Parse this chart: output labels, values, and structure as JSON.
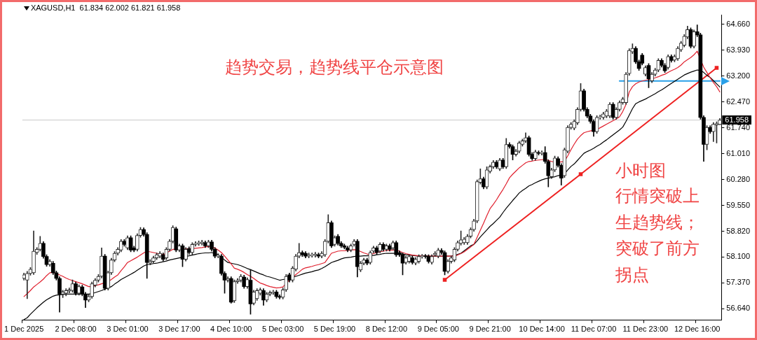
{
  "chart_data": {
    "type": "candlestick",
    "title": "XAGUSD,H1  61.834 62.002 61.821 61.958",
    "colors": [
      "#2a2a2a",
      "#2a2a2a",
      "#2a2a2a",
      "#2a2a2a",
      "#2a2a2a",
      "#2a2a2a",
      "#000000",
      "#000000",
      "#2a2a2a",
      "#000000",
      "#000000",
      "#000000",
      "#2a2a2a",
      "#2a2a2a",
      "#2a2a2a",
      "#2a2a2a",
      "#000000",
      "#2a2a2a",
      "#000000",
      "#000000",
      "#2a2a2a",
      "#2a2a2a",
      "#2a2a2a",
      "#2a2a2a",
      "#2a2a2a",
      "#000000",
      "#2a2a2a",
      "#2a2a2a",
      "#2a2a2a",
      "#2a2a2a",
      "#2a2a2a",
      "#000000",
      "#2a2a2a",
      "#000000",
      "#000000",
      "#2a2a2a",
      "#2a2a2a",
      "#000000",
      "#000000",
      "#2a2a2a",
      "#2a2a2a",
      "#2a2a2a",
      "#2a2a2a",
      "#000000",
      "#2a2a2a",
      "#2a2a2a",
      "#2a2a2a",
      "#000000",
      "#2a2a2a",
      "#000000",
      "#2a2a2a",
      "#000000",
      "#2a2a2a",
      "#2a2a2a",
      "#2a2a2a",
      "#2a2a2a",
      "#000000",
      "#2a2a2a",
      "#000000",
      "#000000",
      "#2a2a2a",
      "#000000",
      "#000000",
      "#2a2a2a",
      "#000000",
      "#2a2a2a",
      "#2a2a2a",
      "#2a2a2a",
      "#000000",
      "#2a2a2a",
      "#000000",
      "#2a2a2a",
      "#2a2a2a",
      "#2a2a2a",
      "#000000",
      "#2a2a2a",
      "#2a2a2a",
      "#2a2a2a",
      "#000000",
      "#000000",
      "#2a2a2a",
      "#2a2a2a",
      "#000000",
      "#2a2a2a",
      "#2a2a2a",
      "#2a2a2a",
      "#000000",
      "#000000",
      "#2a2a2a",
      "#2a2a2a",
      "#2a2a2a",
      "#000000",
      "#2a2a2a",
      "#2a2a2a",
      "#2a2a2a",
      "#000000",
      "#2a2a2a",
      "#000000",
      "#000000",
      "#000000",
      "#000000",
      "#2a2a2a",
      "#2a2a2a",
      "#000000",
      "#2a2a2a",
      "#2a2a2a",
      "#000000",
      "#2a2a2a",
      "#2a2a2a",
      "#000000",
      "#2a2a2a",
      "#000000",
      "#2a2a2a",
      "#000000",
      "#2a2a2a",
      "#000000",
      "#000000",
      "#000000",
      "#2a2a2a",
      "#2a2a2a",
      "#000000",
      "#2a2a2a",
      "#2a2a2a",
      "#2a2a2a",
      "#000000",
      "#000000",
      "#2a2a2a",
      "#2a2a2a",
      "#2a2a2a",
      "#000000",
      "#000000",
      "#2a2a2a",
      "#2a2a2a",
      "#2a2a2a",
      "#2a2a2a",
      "#2a2a2a",
      "#2a2a2a",
      "#2a2a2a",
      "#2a2a2a",
      "#2a2a2a",
      "#2a2a2a",
      "#2a2a2a",
      "#000000",
      "#2a2a2a",
      "#2a2a2a",
      "#2a2a2a",
      "#000000",
      "#2a2a2a",
      "#000000",
      "#2a2a2a",
      "#000000",
      "#000000",
      "#2a2a2a",
      "#2a2a2a",
      "#2a2a2a",
      "#2a2a2a",
      "#000000",
      "#000000",
      "#2a2a2a",
      "#000000",
      "#2a2a2a",
      "#000000",
      "#000000",
      "#2a2a2a",
      "#2a2a2a",
      "#000000",
      "#000000",
      "#2a2a2a",
      "#2a2a2a",
      "#2a2a2a",
      "#2a2a2a",
      "#2a2a2a",
      "#2a2a2a",
      "#000000",
      "#000000",
      "#000000",
      "#000000",
      "#2a2a2a",
      "#2a2a2a",
      "#2a2a2a",
      "#2a2a2a",
      "#2a2a2a",
      "#000000",
      "#2a2a2a",
      "#2a2a2a",
      "#2a2a2a",
      "#2a2a2a",
      "#2a2a2a",
      "#2a2a2a",
      "#000000",
      "#000000",
      "#000000",
      "#2a2a2a",
      "#000000",
      "#2a2a2a",
      "#2a2a2a",
      "#2a2a2a",
      "#000000",
      "#000000",
      "#2a2a2a",
      "#000000",
      "#2a2a2a",
      "#2a2a2a",
      "#2a2a2a",
      "#2a2a2a",
      "#2a2a2a",
      "#000000",
      "#2a2a2a",
      "#000000",
      "#000000",
      "#000000",
      "#2a2a2a",
      "#000000",
      "#2a2a2a",
      "#2a2a2a",
      "#2a2a2a"
    ],
    "categories": [
      "1 Dec 2025",
      null,
      null,
      null,
      null,
      null,
      null,
      null,
      null,
      null,
      null,
      null,
      null,
      null,
      null,
      null,
      "2 Dec 08:00",
      null,
      null,
      null,
      null,
      null,
      null,
      null,
      null,
      null,
      null,
      null,
      null,
      null,
      null,
      null,
      "3 Dec 01:00",
      null,
      null,
      null,
      null,
      null,
      null,
      null,
      null,
      null,
      null,
      null,
      null,
      null,
      null,
      null,
      "3 Dec 17:00",
      null,
      null,
      null,
      null,
      null,
      null,
      null,
      null,
      null,
      null,
      null,
      null,
      null,
      null,
      null,
      "4 Dec 10:00",
      null,
      null,
      null,
      null,
      null,
      null,
      null,
      null,
      null,
      null,
      null,
      null,
      null,
      null,
      null,
      "5 Dec 03:00",
      null,
      null,
      null,
      null,
      null,
      null,
      null,
      null,
      null,
      null,
      null,
      null,
      null,
      null,
      null,
      "5 Dec 19:00",
      null,
      null,
      null,
      null,
      null,
      null,
      null,
      null,
      null,
      null,
      null,
      null,
      null,
      null,
      null,
      "8 Dec 12:00",
      null,
      null,
      null,
      null,
      null,
      null,
      null,
      null,
      null,
      null,
      null,
      null,
      null,
      null,
      null,
      "9 Dec 05:00",
      null,
      null,
      null,
      null,
      null,
      null,
      null,
      null,
      null,
      null,
      null,
      null,
      null,
      null,
      null,
      "9 Dec 21:00",
      null,
      null,
      null,
      null,
      null,
      null,
      null,
      null,
      null,
      null,
      null,
      null,
      null,
      null,
      null,
      "10 Dec 14:00",
      null,
      null,
      null,
      null,
      null,
      null,
      null,
      null,
      null,
      null,
      null,
      null,
      null,
      null,
      null,
      "11 Dec 07:00",
      null,
      null,
      null,
      null,
      null,
      null,
      null,
      null,
      null,
      null,
      null,
      null,
      null,
      null,
      null,
      "11 Dec 23:00",
      null,
      null,
      null,
      null,
      null,
      null,
      null,
      null,
      null,
      null,
      null,
      null,
      null,
      null,
      null,
      "12 Dec 16:00",
      null,
      null,
      null,
      null,
      null,
      null,
      null
    ],
    "ohlc": [
      [
        57.49,
        57.64,
        57.44,
        57.59
      ],
      [
        57.44,
        57.69,
        56.92,
        57.63
      ],
      [
        57.63,
        57.8,
        57.58,
        57.75
      ],
      [
        57.65,
        58.83,
        57.6,
        58.26
      ],
      [
        58.22,
        58.36,
        58.17,
        58.31
      ],
      [
        58.31,
        58.68,
        58.26,
        58.48
      ],
      [
        58.48,
        58.53,
        58.06,
        58.11
      ],
      [
        58.11,
        58.16,
        57.83,
        57.88
      ],
      [
        57.88,
        58.02,
        57.83,
        57.97
      ],
      [
        57.92,
        57.97,
        57.6,
        57.65
      ],
      [
        57.65,
        57.7,
        57.44,
        57.49
      ],
      [
        57.49,
        57.54,
        56.54,
        57.05
      ],
      [
        57.05,
        57.16,
        56.95,
        57.11
      ],
      [
        57.07,
        57.2,
        57.0,
        57.15
      ],
      [
        57.13,
        57.22,
        57.08,
        57.17
      ],
      [
        57.15,
        57.45,
        57.1,
        57.34
      ],
      [
        57.34,
        57.39,
        57.02,
        57.07
      ],
      [
        57.07,
        57.31,
        57.02,
        57.26
      ],
      [
        57.25,
        57.3,
        57.0,
        57.05
      ],
      [
        57.05,
        57.1,
        56.67,
        56.88
      ],
      [
        56.88,
        57.03,
        56.83,
        56.98
      ],
      [
        56.98,
        57.39,
        56.93,
        57.34
      ],
      [
        57.3,
        57.49,
        57.25,
        57.44
      ],
      [
        57.44,
        57.6,
        57.39,
        57.55
      ],
      [
        57.55,
        58.35,
        57.5,
        58.12
      ],
      [
        58.12,
        58.17,
        57.16,
        57.21
      ],
      [
        57.21,
        57.7,
        57.16,
        57.65
      ],
      [
        57.65,
        58.06,
        57.6,
        58.01
      ],
      [
        58.01,
        58.25,
        57.96,
        58.2
      ],
      [
        58.2,
        58.36,
        58.15,
        58.31
      ],
      [
        58.29,
        58.59,
        58.24,
        58.54
      ],
      [
        58.54,
        58.59,
        58.4,
        58.45
      ],
      [
        58.35,
        58.69,
        58.3,
        58.64
      ],
      [
        58.64,
        58.69,
        58.24,
        58.29
      ],
      [
        58.35,
        58.4,
        58.24,
        58.29
      ],
      [
        58.31,
        58.75,
        58.26,
        58.7
      ],
      [
        58.7,
        58.93,
        58.65,
        58.87
      ],
      [
        58.87,
        58.92,
        58.68,
        58.73
      ],
      [
        58.73,
        58.78,
        57.49,
        57.94
      ],
      [
        57.92,
        58.02,
        57.87,
        57.97
      ],
      [
        57.97,
        58.12,
        57.92,
        58.07
      ],
      [
        58.07,
        58.21,
        58.02,
        58.16
      ],
      [
        58.12,
        58.25,
        58.07,
        58.2
      ],
      [
        58.16,
        58.21,
        57.98,
        58.03
      ],
      [
        58.07,
        58.36,
        58.02,
        58.31
      ],
      [
        58.31,
        58.59,
        58.26,
        58.54
      ],
      [
        58.54,
        58.98,
        58.49,
        58.93
      ],
      [
        58.89,
        58.94,
        58.24,
        58.29
      ],
      [
        58.29,
        58.46,
        58.24,
        58.41
      ],
      [
        58.41,
        58.46,
        57.82,
        58.03
      ],
      [
        58.03,
        58.36,
        57.98,
        58.31
      ],
      [
        58.33,
        58.38,
        58.17,
        58.22
      ],
      [
        58.22,
        58.5,
        58.17,
        58.45
      ],
      [
        58.45,
        58.53,
        58.4,
        58.48
      ],
      [
        58.47,
        58.55,
        58.42,
        58.5
      ],
      [
        58.48,
        58.57,
        58.43,
        58.52
      ],
      [
        58.5,
        58.55,
        58.36,
        58.41
      ],
      [
        58.41,
        58.57,
        58.36,
        58.52
      ],
      [
        58.52,
        58.57,
        58.26,
        58.31
      ],
      [
        58.31,
        58.36,
        58.07,
        58.12
      ],
      [
        58.12,
        58.19,
        58.07,
        58.14
      ],
      [
        58.12,
        58.17,
        57.58,
        57.63
      ],
      [
        57.63,
        57.68,
        57.07,
        57.44
      ],
      [
        57.44,
        57.54,
        57.39,
        57.49
      ],
      [
        57.49,
        57.54,
        56.79,
        56.82
      ],
      [
        56.86,
        57.45,
        56.81,
        57.4
      ],
      [
        57.4,
        57.49,
        57.35,
        57.44
      ],
      [
        57.44,
        57.6,
        57.39,
        57.55
      ],
      [
        57.53,
        57.58,
        57.21,
        57.26
      ],
      [
        57.26,
        57.51,
        57.21,
        57.46
      ],
      [
        57.44,
        57.73,
        56.48,
        56.77
      ],
      [
        56.79,
        57.16,
        56.74,
        57.11
      ],
      [
        56.92,
        57.2,
        56.87,
        57.15
      ],
      [
        57.07,
        57.22,
        57.02,
        57.17
      ],
      [
        57.15,
        57.2,
        56.73,
        56.88
      ],
      [
        56.88,
        57.1,
        56.83,
        57.05
      ],
      [
        57.05,
        57.14,
        57.0,
        57.09
      ],
      [
        57.09,
        57.16,
        57.04,
        57.11
      ],
      [
        57.11,
        57.16,
        56.93,
        56.98
      ],
      [
        56.98,
        57.03,
        56.91,
        56.96
      ],
      [
        56.96,
        57.22,
        56.91,
        57.17
      ],
      [
        57.17,
        57.6,
        57.12,
        57.55
      ],
      [
        57.59,
        57.64,
        57.39,
        57.44
      ],
      [
        57.44,
        57.83,
        57.39,
        57.78
      ],
      [
        57.75,
        58.17,
        57.7,
        58.12
      ],
      [
        58.12,
        58.48,
        58.07,
        58.22
      ],
      [
        58.22,
        58.27,
        58.11,
        58.16
      ],
      [
        58.2,
        58.25,
        58.07,
        58.12
      ],
      [
        58.12,
        58.21,
        58.07,
        58.16
      ],
      [
        58.14,
        58.21,
        58.09,
        58.16
      ],
      [
        58.14,
        58.23,
        58.09,
        58.18
      ],
      [
        58.16,
        58.21,
        58.07,
        58.12
      ],
      [
        58.12,
        58.25,
        58.07,
        58.2
      ],
      [
        58.16,
        58.59,
        58.11,
        58.54
      ],
      [
        58.54,
        59.29,
        58.49,
        59.06
      ],
      [
        59.06,
        59.11,
        58.36,
        58.41
      ],
      [
        58.45,
        58.69,
        58.4,
        58.64
      ],
      [
        58.68,
        58.73,
        58.43,
        58.48
      ],
      [
        58.48,
        58.53,
        58.36,
        58.41
      ],
      [
        58.41,
        58.46,
        58.32,
        58.37
      ],
      [
        58.35,
        58.4,
        58.24,
        58.29
      ],
      [
        58.29,
        58.46,
        58.24,
        58.41
      ],
      [
        58.45,
        58.59,
        58.4,
        58.54
      ],
      [
        58.54,
        58.59,
        57.53,
        57.82
      ],
      [
        57.73,
        57.97,
        57.68,
        57.92
      ],
      [
        57.92,
        58.06,
        57.87,
        58.01
      ],
      [
        58.01,
        58.06,
        57.87,
        57.92
      ],
      [
        57.94,
        58.27,
        57.89,
        58.22
      ],
      [
        58.26,
        58.4,
        58.21,
        58.35
      ],
      [
        58.35,
        58.4,
        58.17,
        58.22
      ],
      [
        58.26,
        58.5,
        58.21,
        58.45
      ],
      [
        58.45,
        58.5,
        58.26,
        58.31
      ],
      [
        58.31,
        58.46,
        58.26,
        58.41
      ],
      [
        58.41,
        58.46,
        58.26,
        58.31
      ],
      [
        58.35,
        58.55,
        58.3,
        58.5
      ],
      [
        58.5,
        58.55,
        58.11,
        58.16
      ],
      [
        58.22,
        58.27,
        58.11,
        58.16
      ],
      [
        58.16,
        58.21,
        57.59,
        57.92
      ],
      [
        57.94,
        58.12,
        57.89,
        58.07
      ],
      [
        57.97,
        58.16,
        57.92,
        58.11
      ],
      [
        58.07,
        58.12,
        57.89,
        57.94
      ],
      [
        57.92,
        58.08,
        57.87,
        58.03
      ],
      [
        57.97,
        58.16,
        57.92,
        58.11
      ],
      [
        58.11,
        58.17,
        58.06,
        58.12
      ],
      [
        58.12,
        58.17,
        58.06,
        58.11
      ],
      [
        58.11,
        58.16,
        57.92,
        57.97
      ],
      [
        57.94,
        58.16,
        57.89,
        58.11
      ],
      [
        58.16,
        58.25,
        58.11,
        58.2
      ],
      [
        58.12,
        58.34,
        58.07,
        58.29
      ],
      [
        58.28,
        58.33,
        58.17,
        58.22
      ],
      [
        58.22,
        58.27,
        57.59,
        57.69
      ],
      [
        57.69,
        58.02,
        57.64,
        57.97
      ],
      [
        57.97,
        58.12,
        57.92,
        58.07
      ],
      [
        58.01,
        58.36,
        57.96,
        58.31
      ],
      [
        58.31,
        58.55,
        58.26,
        58.5
      ],
      [
        58.48,
        58.83,
        58.43,
        58.58
      ],
      [
        58.5,
        58.65,
        58.45,
        58.6
      ],
      [
        58.5,
        58.73,
        58.45,
        58.68
      ],
      [
        58.68,
        58.92,
        58.63,
        58.87
      ],
      [
        58.87,
        59.16,
        58.82,
        59.11
      ],
      [
        59.11,
        60.27,
        59.06,
        60.22
      ],
      [
        60.2,
        60.58,
        60.15,
        60.3
      ],
      [
        60.3,
        60.35,
        60.02,
        60.07
      ],
      [
        60.07,
        60.64,
        60.02,
        60.55
      ],
      [
        60.51,
        60.69,
        60.46,
        60.64
      ],
      [
        60.64,
        60.82,
        60.59,
        60.77
      ],
      [
        60.77,
        60.82,
        60.59,
        60.64
      ],
      [
        60.58,
        60.88,
        60.53,
        60.83
      ],
      [
        60.83,
        60.88,
        60.59,
        60.64
      ],
      [
        60.64,
        61.44,
        60.59,
        61.27
      ],
      [
        61.27,
        61.32,
        61.16,
        61.21
      ],
      [
        61.21,
        61.26,
        60.83,
        60.99
      ],
      [
        60.99,
        61.13,
        60.94,
        61.08
      ],
      [
        61.08,
        61.36,
        61.03,
        61.31
      ],
      [
        61.27,
        61.42,
        61.22,
        61.37
      ],
      [
        61.37,
        61.6,
        61.32,
        61.46
      ],
      [
        61.46,
        61.51,
        60.94,
        60.99
      ],
      [
        60.99,
        61.04,
        60.82,
        60.87
      ],
      [
        60.87,
        61.11,
        60.82,
        61.06
      ],
      [
        61.04,
        61.09,
        60.97,
        61.02
      ],
      [
        61.02,
        61.09,
        60.97,
        61.04
      ],
      [
        61.04,
        61.21,
        60.74,
        60.79
      ],
      [
        60.79,
        60.84,
        60.07,
        60.39
      ],
      [
        60.36,
        60.6,
        60.31,
        60.55
      ],
      [
        60.55,
        60.94,
        60.5,
        60.89
      ],
      [
        60.87,
        60.92,
        60.63,
        60.68
      ],
      [
        60.68,
        60.73,
        60.12,
        60.32
      ],
      [
        60.39,
        61.17,
        60.34,
        61.12
      ],
      [
        61.08,
        61.8,
        61.03,
        61.75
      ],
      [
        61.75,
        61.89,
        61.7,
        61.84
      ],
      [
        61.73,
        61.97,
        61.68,
        61.92
      ],
      [
        61.88,
        62.31,
        61.83,
        62.26
      ],
      [
        62.26,
        62.99,
        62.21,
        62.78
      ],
      [
        62.78,
        62.83,
        62.21,
        62.26
      ],
      [
        62.26,
        62.31,
        62.02,
        62.07
      ],
      [
        62.07,
        62.12,
        61.87,
        61.92
      ],
      [
        61.92,
        61.97,
        61.5,
        61.63
      ],
      [
        61.63,
        62.08,
        61.58,
        62.03
      ],
      [
        62.03,
        62.1,
        61.98,
        62.05
      ],
      [
        62.03,
        62.18,
        61.98,
        62.13
      ],
      [
        62.07,
        62.26,
        62.02,
        62.21
      ],
      [
        62.07,
        62.45,
        62.02,
        62.4
      ],
      [
        62.4,
        62.45,
        61.98,
        62.03
      ],
      [
        62.03,
        62.31,
        61.98,
        62.26
      ],
      [
        62.26,
        62.5,
        62.21,
        62.45
      ],
      [
        62.45,
        62.6,
        62.4,
        62.55
      ],
      [
        62.45,
        63.3,
        62.4,
        63.25
      ],
      [
        63.27,
        63.97,
        63.22,
        63.92
      ],
      [
        63.88,
        64.11,
        63.83,
        63.98
      ],
      [
        63.98,
        64.03,
        63.55,
        63.6
      ],
      [
        63.6,
        63.65,
        63.36,
        63.41
      ],
      [
        63.79,
        63.84,
        63.51,
        63.56
      ],
      [
        63.25,
        63.49,
        63.2,
        63.44
      ],
      [
        63.5,
        63.55,
        62.87,
        63.12
      ],
      [
        63.06,
        63.3,
        63.01,
        63.25
      ],
      [
        63.25,
        63.42,
        63.2,
        63.37
      ],
      [
        63.37,
        63.69,
        63.32,
        63.64
      ],
      [
        63.64,
        63.69,
        63.45,
        63.5
      ],
      [
        63.5,
        63.55,
        63.3,
        63.35
      ],
      [
        63.44,
        63.8,
        63.39,
        63.75
      ],
      [
        63.75,
        63.8,
        63.59,
        63.64
      ],
      [
        63.65,
        63.8,
        63.6,
        63.75
      ],
      [
        63.69,
        64.03,
        63.64,
        63.98
      ],
      [
        63.94,
        64.18,
        63.89,
        64.13
      ],
      [
        64.07,
        64.37,
        64.02,
        64.32
      ],
      [
        64.3,
        64.61,
        64.25,
        64.51
      ],
      [
        64.51,
        64.56,
        63.99,
        64.04
      ],
      [
        64.04,
        64.5,
        63.99,
        64.45
      ],
      [
        64.45,
        64.64,
        64.31,
        64.36
      ],
      [
        64.36,
        64.41,
        61.98,
        62.03
      ],
      [
        62.03,
        62.08,
        60.79,
        61.27
      ],
      [
        61.27,
        61.8,
        61.12,
        61.75
      ],
      [
        61.75,
        61.8,
        61.58,
        61.63
      ],
      [
        61.63,
        61.89,
        61.35,
        61.84
      ],
      [
        61.82,
        61.91,
        61.31,
        61.86
      ],
      [
        61.834,
        62.002,
        61.821,
        61.958
      ]
    ],
    "series": [
      {
        "type": "line",
        "color": "#e0202e",
        "values": [
          56.98,
          57.06,
          57.15,
          57.25,
          57.32,
          57.39,
          57.47,
          57.57,
          57.65,
          57.66,
          57.63,
          57.59,
          57.55,
          57.5,
          57.46,
          57.43,
          57.4,
          57.37,
          57.34,
          57.3,
          57.26,
          57.26,
          57.29,
          57.31,
          57.34,
          57.37,
          57.4,
          57.46,
          57.53,
          57.59,
          57.71,
          57.82,
          57.94,
          57.99,
          58.04,
          58.09,
          58.15,
          58.21,
          58.26,
          58.24,
          58.22,
          58.2,
          58.18,
          58.16,
          58.21,
          58.26,
          58.31,
          58.31,
          58.31,
          null,
          58.32,
          58.33,
          58.33,
          58.34,
          58.35,
          58.36,
          58.38,
          58.39,
          58.37,
          58.35,
          58.29,
          58.22,
          58.12,
          58.01,
          57.9,
          57.78,
          57.75,
          57.71,
          57.66,
          57.6,
          57.55,
          57.49,
          57.42,
          57.36,
          57.33,
          57.29,
          57.26,
          57.24,
          57.22,
          57.23,
          57.25,
          57.35,
          57.44,
          57.52,
          57.6,
          57.67,
          57.75,
          57.79,
          57.81,
          57.83,
          57.86,
          57.88,
          57.91,
          57.94,
          58.07,
          58.2,
          58.23,
          58.26,
          58.27,
          58.27,
          58.28,
          58.29,
          58.3,
          58.29,
          58.25,
          58.21,
          58.18,
          58.16,
          58.19,
          58.22,
          58.24,
          58.26,
          58.28,
          58.28,
          58.29,
          58.29,
          58.26,
          58.22,
          58.19,
          58.17,
          58.15,
          58.14,
          58.13,
          58.13,
          58.12,
          58.12,
          58.12,
          58.12,
          58.12,
          null,
          null,
          null,
          58.12,
          58.12,
          58.15,
          58.19,
          58.24,
          58.31,
          58.38,
          58.45,
          58.65,
          58.85,
          59.05,
          59.26,
          59.46,
          59.58,
          59.71,
          59.86,
          60.0,
          60.16,
          60.33,
          60.43,
          60.52,
          60.61,
          60.68,
          60.75,
          60.79,
          60.8,
          60.82,
          60.83,
          60.84,
          60.85,
          60.82,
          60.79,
          60.78,
          60.77,
          60.78,
          60.79,
          60.95,
          61.12,
          61.28,
          61.42,
          61.52,
          61.6,
          61.63,
          61.65,
          61.67,
          61.69,
          61.74,
          61.79,
          61.84,
          61.89,
          61.94,
          61.99,
          62.05,
          62.2,
          62.4,
          62.75,
          62.9,
          62.98,
          63.03,
          63.06,
          63.08,
          63.1,
          63.12,
          63.15,
          63.18,
          63.22,
          63.25,
          63.3,
          63.35,
          63.39,
          63.44,
          63.51,
          63.6,
          63.66,
          63.72,
          63.8,
          63.9,
          null,
          63.45,
          63.3,
          63.15,
          63.02,
          62.9,
          62.75
        ]
      },
      {
        "type": "line",
        "color": "#000000",
        "values": [
          56.33,
          56.38,
          56.48,
          56.57,
          56.66,
          56.74,
          56.82,
          56.89,
          56.94,
          56.99,
          57.02,
          57.03,
          57.04,
          57.05,
          57.05,
          57.05,
          57.05,
          57.05,
          57.05,
          57.05,
          57.05,
          57.06,
          57.09,
          57.12,
          57.15,
          57.19,
          57.22,
          57.26,
          57.33,
          57.39,
          57.46,
          57.51,
          57.56,
          57.61,
          57.66,
          57.72,
          57.78,
          57.84,
          57.88,
          57.89,
          57.91,
          57.92,
          57.94,
          57.96,
          57.98,
          58.01,
          58.03,
          58.05,
          58.07,
          58.09,
          58.11,
          58.13,
          58.15,
          58.17,
          58.19,
          58.2,
          58.21,
          58.21,
          58.22,
          58.19,
          58.16,
          58.09,
          58.01,
          57.94,
          57.92,
          57.9,
          57.88,
          57.85,
          57.81,
          57.77,
          57.74,
          57.7,
          57.66,
          57.62,
          57.59,
          57.55,
          57.53,
          57.5,
          57.47,
          57.44,
          57.46,
          57.47,
          57.49,
          57.52,
          57.55,
          57.58,
          57.61,
          57.64,
          57.66,
          57.68,
          57.71,
          57.73,
          57.77,
          57.82,
          57.88,
          57.94,
          57.97,
          58.0,
          58.04,
          58.07,
          58.08,
          58.09,
          58.11,
          58.12,
          58.12,
          58.13,
          58.13,
          58.14,
          58.14,
          58.16,
          58.17,
          58.19,
          58.2,
          58.2,
          58.2,
          58.2,
          58.19,
          58.18,
          58.16,
          58.15,
          58.14,
          58.13,
          58.12,
          58.12,
          58.12,
          58.12,
          58.12,
          58.12,
          58.12,
          58.12,
          58.12,
          58.12,
          58.12,
          58.14,
          58.17,
          58.2,
          58.27,
          58.34,
          58.41,
          58.45,
          58.55,
          58.66,
          58.76,
          58.86,
          58.96,
          59.04,
          59.13,
          59.22,
          59.35,
          59.47,
          59.58,
          59.69,
          59.79,
          59.9,
          59.97,
          60.03,
          60.1,
          60.14,
          60.19,
          60.23,
          60.27,
          60.3,
          60.32,
          60.34,
          60.36,
          60.39,
          60.41,
          60.44,
          60.55,
          60.65,
          60.72,
          60.82,
          60.92,
          61.02,
          61.07,
          61.11,
          61.16,
          61.22,
          61.27,
          61.34,
          61.4,
          61.47,
          61.54,
          61.61,
          61.68,
          61.76,
          61.92,
          62.1,
          62.28,
          62.42,
          62.47,
          62.51,
          62.55,
          62.6,
          62.65,
          62.7,
          62.76,
          62.81,
          62.87,
          62.93,
          62.99,
          63.05,
          63.11,
          63.17,
          63.23,
          63.27,
          63.31,
          63.34,
          63.37,
          63.36,
          63.3,
          63.22,
          63.16,
          63.07,
          62.98,
          62.89
        ]
      },
      {
        "type": "line",
        "color": "#ee2222",
        "marker": "square",
        "values": [
          null,
          null,
          null,
          null,
          null,
          null,
          null,
          null,
          null,
          null,
          null,
          null,
          null,
          null,
          null,
          null,
          null,
          null,
          null,
          null,
          null,
          null,
          null,
          null,
          null,
          null,
          null,
          null,
          null,
          null,
          null,
          null,
          null,
          null,
          null,
          null,
          null,
          null,
          null,
          null,
          null,
          null,
          null,
          null,
          null,
          null,
          null,
          null,
          null,
          null,
          null,
          null,
          null,
          null,
          null,
          null,
          null,
          null,
          null,
          null,
          null,
          null,
          null,
          null,
          null,
          null,
          null,
          null,
          null,
          null,
          null,
          null,
          null,
          null,
          null,
          null,
          null,
          null,
          null,
          null,
          null,
          null,
          null,
          null,
          null,
          null,
          null,
          null,
          null,
          null,
          null,
          null,
          null,
          null,
          null,
          null,
          null,
          null,
          null,
          null,
          null,
          null,
          null,
          null,
          null,
          null,
          null,
          null,
          null,
          null,
          null,
          null,
          null,
          null,
          null,
          null,
          null,
          null,
          null,
          null,
          null,
          null,
          null,
          null,
          null,
          null,
          null,
          null,
          null,
          null,
          57.45,
          null,
          null,
          null,
          null,
          null,
          null,
          null,
          null,
          null,
          null,
          null,
          null,
          null,
          null,
          null,
          null,
          null,
          null,
          null,
          null,
          null,
          null,
          null,
          null,
          null,
          null,
          null,
          null,
          null,
          null,
          null,
          null,
          null,
          null,
          null,
          null,
          null,
          null,
          null,
          null,
          null,
          60.43,
          null,
          null,
          null,
          null,
          null,
          null,
          null,
          null,
          null,
          null,
          null,
          null,
          null,
          null,
          null,
          null,
          null,
          null,
          null,
          null,
          null,
          null,
          null,
          null,
          null,
          null,
          null,
          null,
          null,
          null,
          null,
          null,
          null,
          null,
          null,
          null,
          null,
          null,
          null,
          null,
          null,
          63.43,
          null
        ]
      },
      {
        "type": "line",
        "color": "#2aa0e8",
        "values": [
          null,
          null,
          null,
          null,
          null,
          null,
          null,
          null,
          null,
          null,
          null,
          null,
          null,
          null,
          null,
          null,
          null,
          null,
          null,
          null,
          null,
          null,
          null,
          null,
          null,
          null,
          null,
          null,
          null,
          null,
          null,
          null,
          null,
          null,
          null,
          null,
          null,
          null,
          null,
          null,
          null,
          null,
          null,
          null,
          null,
          null,
          null,
          null,
          null,
          null,
          null,
          null,
          null,
          null,
          null,
          null,
          null,
          null,
          null,
          null,
          null,
          null,
          null,
          null,
          null,
          null,
          null,
          null,
          null,
          null,
          null,
          null,
          null,
          null,
          null,
          null,
          null,
          null,
          null,
          null,
          null,
          null,
          null,
          null,
          null,
          null,
          null,
          null,
          null,
          null,
          null,
          null,
          null,
          null,
          null,
          null,
          null,
          null,
          null,
          null,
          null,
          null,
          null,
          null,
          null,
          null,
          null,
          null,
          null,
          null,
          null,
          null,
          null,
          null,
          null,
          null,
          null,
          null,
          null,
          null,
          null,
          null,
          null,
          null,
          null,
          null,
          null,
          null,
          null,
          null,
          null,
          null,
          null,
          null,
          null,
          null,
          null,
          null,
          null,
          null,
          null,
          null,
          null,
          null,
          null,
          null,
          null,
          null,
          null,
          null,
          null,
          null,
          null,
          null,
          null,
          null,
          null,
          null,
          null,
          null,
          null,
          null,
          null,
          null,
          null,
          null,
          null,
          null,
          null,
          null,
          null,
          null,
          null,
          null,
          null,
          null,
          null,
          null,
          null,
          null,
          null,
          null,
          null,
          null,
          63.06,
          null,
          null,
          null,
          null,
          null,
          null,
          null,
          null,
          null,
          null,
          null,
          null,
          null,
          null,
          null,
          null,
          null,
          null,
          null,
          null,
          null,
          null,
          null,
          null,
          null,
          null,
          null,
          null,
          null,
          null,
          63.06
        ]
      }
    ],
    "ylim": [
      56.31,
      64.93
    ],
    "yticks": [
      {
        "value": 64.66,
        "label": "64.660"
      },
      {
        "value": 63.93,
        "label": "63.930"
      },
      {
        "value": 63.2,
        "label": "63.200"
      },
      {
        "value": 62.47,
        "label": "62.470"
      },
      {
        "value": 61.74,
        "label": "61.740"
      },
      {
        "value": 61.01,
        "label": "61.010"
      },
      {
        "value": 60.28,
        "label": "60.280"
      },
      {
        "value": 59.55,
        "label": "59.550"
      },
      {
        "value": 58.82,
        "label": "58.820"
      },
      {
        "value": 58.1,
        "label": "58.100"
      },
      {
        "value": 57.37,
        "label": "57.370"
      },
      {
        "value": 56.64,
        "label": "56.640"
      }
    ],
    "ref_lines": [
      {
        "axis": "y",
        "value": 61.958,
        "label": "61.958",
        "color": "#c8c8c8"
      }
    ],
    "annotations": [
      "趋势交易，趋势线平仓示意图",
      "小时图",
      "行情突破上生趋势线；突破了前方拐点"
    ]
  }
}
